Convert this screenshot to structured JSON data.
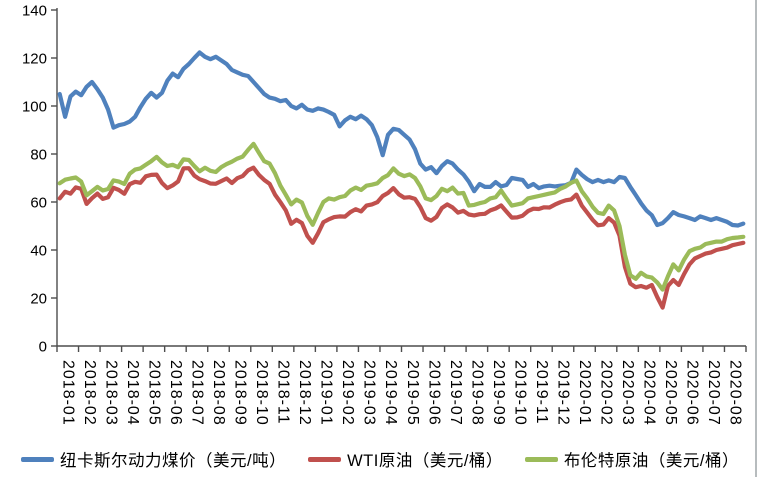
{
  "figure": {
    "background": "#ffffff",
    "right_edge_line_color": "#b7bcbe",
    "axis_color": "#4d4d4d"
  },
  "chart_data": {
    "type": "line",
    "title": "",
    "grid": false,
    "legend_position": "bottom",
    "points_per_category": 4,
    "x_axis": {
      "label_rotation_deg": 90,
      "categories": [
        "2018-01",
        "2018-02",
        "2018-03",
        "2018-04",
        "2018-05",
        "2018-06",
        "2018-07",
        "2018-08",
        "2018-09",
        "2018-10",
        "2018-11",
        "2018-12",
        "2019-01",
        "2019-02",
        "2019-03",
        "2019-04",
        "2019-05",
        "2019-06",
        "2019-07",
        "2019-08",
        "2019-09",
        "2019-10",
        "2019-11",
        "2019-12",
        "2020-01",
        "2020-02",
        "2020-03",
        "2020-04",
        "2020-05",
        "2020-06",
        "2020-07",
        "2020-08"
      ]
    },
    "y_axis": {
      "min": 0,
      "max": 140,
      "step": 20,
      "tick_labels": [
        "0",
        "20",
        "40",
        "60",
        "80",
        "100",
        "120",
        "140"
      ]
    },
    "series": [
      {
        "name": "纽卡斯尔动力煤价（美元/吨）",
        "color": "#4F81BD",
        "values": [
          105,
          95.5,
          104,
          106,
          104.5,
          108,
          110,
          107,
          103.5,
          98.5,
          91,
          92,
          92.5,
          93.5,
          95.5,
          99.5,
          103,
          105.5,
          103.5,
          105.5,
          110.5,
          113.5,
          112,
          115.5,
          117.5,
          120,
          122.3,
          120.5,
          119.5,
          120.5,
          119,
          117.5,
          115,
          114,
          113,
          112.5,
          110,
          107.5,
          105,
          103.5,
          103,
          102,
          102.5,
          100,
          99,
          100.5,
          98.5,
          98,
          99,
          98.5,
          97.5,
          96.3,
          91.5,
          94,
          95.5,
          94.5,
          96,
          94.5,
          92,
          87,
          79.5,
          88,
          90.5,
          90,
          88,
          86,
          82,
          76,
          73.5,
          74.5,
          72,
          75,
          77,
          76,
          73.5,
          71.5,
          68.5,
          64.5,
          67.5,
          66.3,
          66.3,
          68.3,
          66.5,
          67.1,
          70,
          69.6,
          69.2,
          66.3,
          67.5,
          65.8,
          66.5,
          66.8,
          66.5,
          66.8,
          67,
          68,
          73.5,
          71.3,
          69.5,
          68.3,
          69.2,
          68.3,
          69,
          68.3,
          70.4,
          70,
          66.3,
          62.9,
          59.5,
          56.5,
          54.5,
          50.4,
          51.2,
          53.3,
          55.8,
          54.6,
          54,
          53.3,
          52.5,
          54,
          53.3,
          52.5,
          53.3,
          52.5,
          51.7,
          50.4,
          50.2,
          51
        ]
      },
      {
        "name": "WTI原油（美元/桶）",
        "color": "#C0504D",
        "values": [
          61.5,
          64.3,
          63.5,
          66.1,
          65.5,
          59.2,
          61.6,
          63.5,
          61.3,
          62,
          65.9,
          65,
          63.4,
          67.4,
          68.4,
          68,
          70.7,
          71.3,
          71.4,
          67.9,
          65.8,
          66.9,
          68.6,
          74,
          74.1,
          71,
          69.5,
          68.7,
          67.7,
          67.6,
          68.7,
          69.8,
          67.9,
          69.9,
          70.8,
          73.2,
          74.3,
          71.3,
          69.2,
          67.6,
          63.1,
          59.9,
          56.5,
          50.9,
          52.6,
          51.2,
          45.9,
          43,
          47,
          51.6,
          52.8,
          53.7,
          54,
          53.9,
          55.8,
          57,
          56.1,
          58.5,
          59,
          59.9,
          62.5,
          63.8,
          65.8,
          63.2,
          61.8,
          62,
          61.3,
          57.9,
          53.3,
          52.2,
          53.8,
          57.5,
          59,
          57.7,
          55.6,
          56.3,
          54.8,
          54.4,
          54.9,
          55.1,
          56.5,
          57.3,
          58.6,
          56,
          53.5,
          53.6,
          54.3,
          56.2,
          57.2,
          57.1,
          57.8,
          57.7,
          58.9,
          59.9,
          60.7,
          61.1,
          63.1,
          58.5,
          55.6,
          52.6,
          50.3,
          50.6,
          53.3,
          51.4,
          46,
          33,
          26,
          24.5,
          25,
          24.3,
          25.4,
          20.4,
          16,
          25,
          27.5,
          25.4,
          30,
          34,
          36.5,
          37.5,
          38.5,
          39,
          40,
          40.5,
          41,
          42,
          42.5,
          43
        ]
      },
      {
        "name": "布伦特原油（美元/桶）",
        "color": "#9BBB59",
        "values": [
          67.8,
          69.3,
          69.8,
          70.2,
          68.5,
          62.8,
          64.5,
          66.3,
          64.8,
          65.4,
          69,
          68.5,
          67.5,
          71.8,
          73.5,
          74,
          75.5,
          77,
          78.8,
          76.5,
          75,
          75.5,
          74.5,
          77.8,
          77.5,
          75,
          72.8,
          74.3,
          73,
          72.5,
          74.5,
          75.8,
          76.8,
          78.1,
          78.9,
          81.7,
          84.2,
          80.5,
          77,
          76,
          72,
          66.8,
          63,
          59,
          61,
          59.8,
          54.2,
          50.5,
          55.5,
          60,
          61.5,
          61,
          62,
          62.5,
          64.8,
          66,
          65,
          66.8,
          67.2,
          67.8,
          70,
          71.2,
          74,
          71.8,
          70.8,
          71.5,
          70,
          66.5,
          61.5,
          60.8,
          62.5,
          65.5,
          64.5,
          66,
          63.5,
          63.8,
          58.5,
          58.8,
          59.5,
          60,
          61.5,
          62,
          64.8,
          61.5,
          58.5,
          59,
          59.5,
          61.5,
          62,
          62.5,
          63,
          63.5,
          64,
          65.5,
          66.5,
          68,
          68.9,
          64.5,
          61.5,
          58,
          55.5,
          55,
          58.5,
          56.5,
          50,
          38,
          29.5,
          28,
          30.5,
          29,
          28.5,
          26.5,
          23.5,
          29,
          34,
          31.5,
          36,
          39.5,
          40.5,
          41,
          42.5,
          43,
          43.5,
          43.5,
          44.5,
          45,
          45.2,
          45.5
        ]
      }
    ]
  }
}
